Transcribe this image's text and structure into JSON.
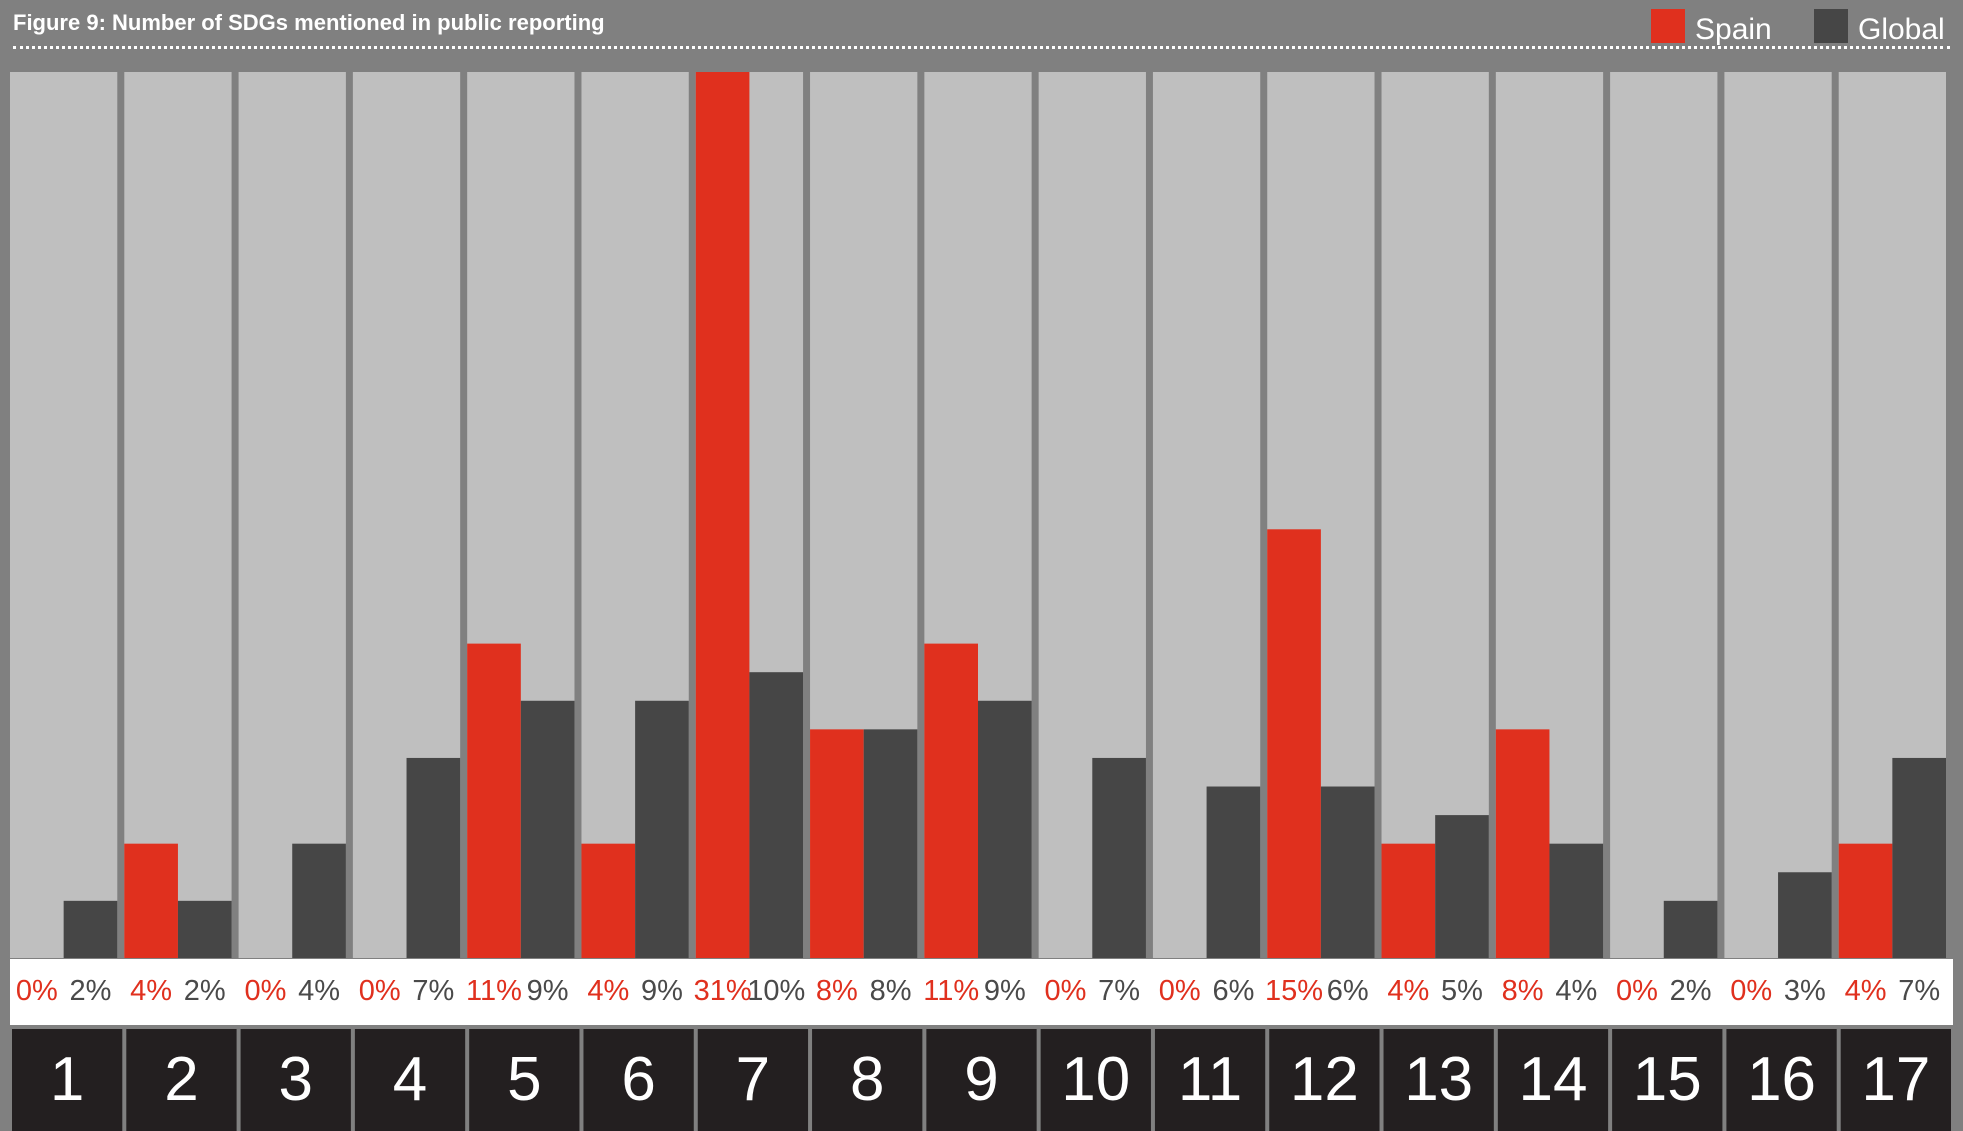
{
  "chart_data": {
    "type": "bar",
    "title": "Figure 9: Number of SDGs mentioned in public reporting",
    "xlabel": "",
    "ylabel": "",
    "categories": [
      "1",
      "2",
      "3",
      "4",
      "5",
      "6",
      "7",
      "8",
      "9",
      "10",
      "11",
      "12",
      "13",
      "14",
      "15",
      "16",
      "17"
    ],
    "series": [
      {
        "name": "Spain",
        "color": "#E0301E",
        "values": [
          0,
          4,
          0,
          0,
          11,
          4,
          31,
          8,
          11,
          0,
          0,
          15,
          4,
          8,
          0,
          0,
          4
        ],
        "labels": [
          "0%",
          "4%",
          "0%",
          "0%",
          "11%",
          "4%",
          "31%",
          "8%",
          "11%",
          "0%",
          "0%",
          "15%",
          "4%",
          "8%",
          "0%",
          "0%",
          "4%"
        ]
      },
      {
        "name": "Global",
        "color": "#464646",
        "values": [
          2,
          2,
          4,
          7,
          9,
          9,
          10,
          8,
          9,
          7,
          6,
          6,
          5,
          4,
          2,
          3,
          7
        ],
        "labels": [
          "2%",
          "2%",
          "4%",
          "7%",
          "9%",
          "9%",
          "10%",
          "8%",
          "9%",
          "7%",
          "6%",
          "6%",
          "5%",
          "4%",
          "2%",
          "3%",
          "7%"
        ]
      }
    ],
    "ylim": [
      0,
      31
    ],
    "grid": false,
    "legend": "top-right"
  },
  "colors": {
    "background": "#808080",
    "panel": "#BFBFBF",
    "label_strip": "#FFFFFF",
    "number_tile": "#231F20"
  }
}
